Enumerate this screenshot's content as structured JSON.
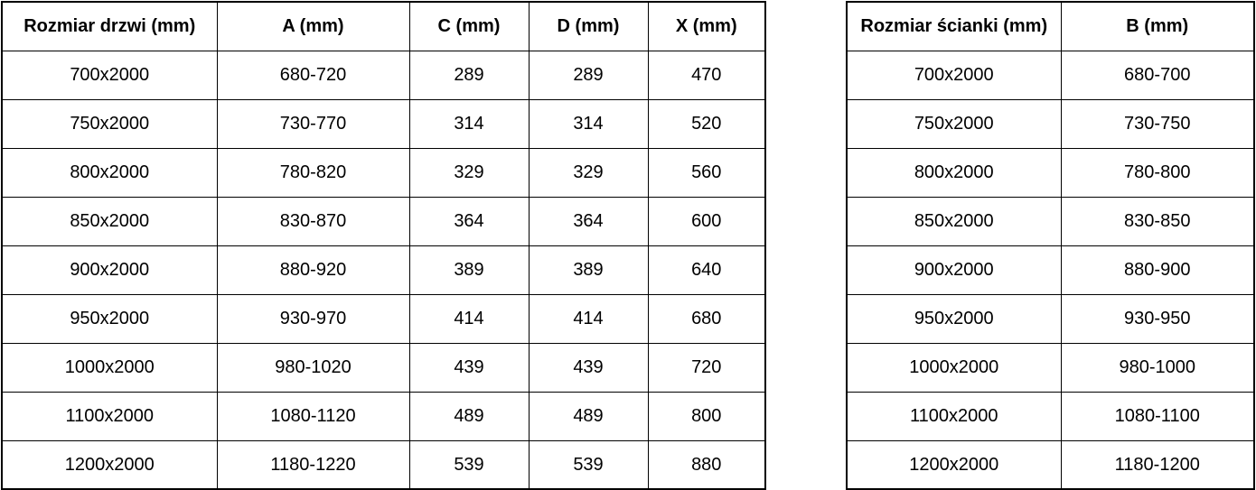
{
  "doors_table": {
    "headers": [
      "Rozmiar drzwi (mm)",
      "A (mm)",
      "C (mm)",
      "D (mm)",
      "X (mm)"
    ],
    "rows": [
      [
        "700x2000",
        "680-720",
        "289",
        "289",
        "470"
      ],
      [
        "750x2000",
        "730-770",
        "314",
        "314",
        "520"
      ],
      [
        "800x2000",
        "780-820",
        "329",
        "329",
        "560"
      ],
      [
        "850x2000",
        "830-870",
        "364",
        "364",
        "600"
      ],
      [
        "900x2000",
        "880-920",
        "389",
        "389",
        "640"
      ],
      [
        "950x2000",
        "930-970",
        "414",
        "414",
        "680"
      ],
      [
        "1000x2000",
        "980-1020",
        "439",
        "439",
        "720"
      ],
      [
        "1100x2000",
        "1080-1120",
        "489",
        "489",
        "800"
      ],
      [
        "1200x2000",
        "1180-1220",
        "539",
        "539",
        "880"
      ]
    ]
  },
  "walls_table": {
    "headers": [
      "Rozmiar ścianki (mm)",
      "B (mm)"
    ],
    "rows": [
      [
        "700x2000",
        "680-700"
      ],
      [
        "750x2000",
        "730-750"
      ],
      [
        "800x2000",
        "780-800"
      ],
      [
        "850x2000",
        "830-850"
      ],
      [
        "900x2000",
        "880-900"
      ],
      [
        "950x2000",
        "930-950"
      ],
      [
        "1000x2000",
        "980-1000"
      ],
      [
        "1100x2000",
        "1080-1100"
      ],
      [
        "1200x2000",
        "1180-1200"
      ]
    ]
  },
  "colors": {
    "border": "#000000",
    "text": "#000000",
    "background": "#ffffff"
  }
}
